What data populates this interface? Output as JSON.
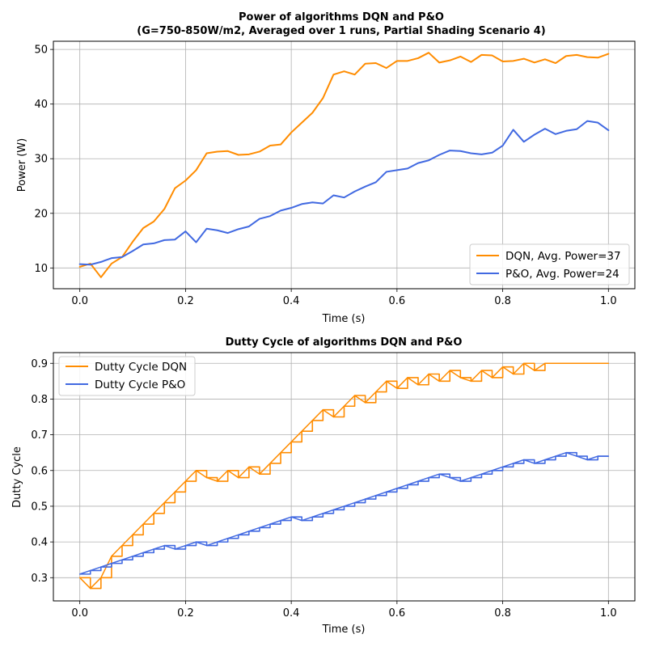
{
  "chart_data": [
    {
      "type": "line",
      "title": "Power of algorithms DQN and P&O",
      "subtitle": "(G=750-850W/m2, Averaged over 1 runs, Partial Shading Scenario 4)",
      "xlabel": "Time (s)",
      "ylabel": "Power (W)",
      "xlim": [
        -0.05,
        1.05
      ],
      "ylim": [
        6.2,
        51.5
      ],
      "xticks": [
        0.0,
        0.2,
        0.4,
        0.6,
        0.8,
        1.0
      ],
      "xtick_labels": [
        "0.0",
        "0.2",
        "0.4",
        "0.6",
        "0.8",
        "1.0"
      ],
      "yticks": [
        10,
        20,
        30,
        40,
        50
      ],
      "ytick_labels": [
        "10",
        "20",
        "30",
        "40",
        "50"
      ],
      "grid": true,
      "legend_position": "lower-right",
      "x": [
        0.0,
        0.02,
        0.04,
        0.06,
        0.08,
        0.1,
        0.12,
        0.14,
        0.16,
        0.18,
        0.2,
        0.22,
        0.24,
        0.26,
        0.28,
        0.3,
        0.32,
        0.34,
        0.36,
        0.38,
        0.4,
        0.42,
        0.44,
        0.46,
        0.48,
        0.5,
        0.52,
        0.54,
        0.56,
        0.58,
        0.6,
        0.62,
        0.64,
        0.66,
        0.68,
        0.7,
        0.72,
        0.74,
        0.76,
        0.78,
        0.8,
        0.82,
        0.84,
        0.86,
        0.88,
        0.9,
        0.92,
        0.94,
        0.96,
        0.98,
        1.0
      ],
      "series": [
        {
          "name": "DQN, Avg. Power=37",
          "color": "#ff8c00",
          "values": [
            10.2,
            10.8,
            8.3,
            10.8,
            12.0,
            14.8,
            17.3,
            18.5,
            20.8,
            24.6,
            26.0,
            27.9,
            31.0,
            31.3,
            31.4,
            30.7,
            30.8,
            31.3,
            32.4,
            32.6,
            34.8,
            36.6,
            38.4,
            41.1,
            45.4,
            46.0,
            45.4,
            47.4,
            47.5,
            46.6,
            47.9,
            47.9,
            48.4,
            49.4,
            47.6,
            48.0,
            48.7,
            47.7,
            49.0,
            48.9,
            47.8,
            47.9,
            48.3,
            47.6,
            48.2,
            47.5,
            48.8,
            49.0,
            48.6,
            48.5,
            49.2
          ]
        },
        {
          "name": "P&O, Avg. Power=24",
          "color": "#4169e1",
          "values": [
            10.7,
            10.6,
            11.1,
            11.8,
            12.0,
            13.1,
            14.3,
            14.5,
            15.1,
            15.2,
            16.7,
            14.7,
            17.2,
            16.9,
            16.4,
            17.1,
            17.6,
            19.0,
            19.5,
            20.5,
            21.0,
            21.7,
            22.0,
            21.8,
            23.3,
            22.9,
            24.0,
            24.9,
            25.7,
            27.6,
            27.9,
            28.2,
            29.2,
            29.7,
            30.7,
            31.5,
            31.4,
            31.0,
            30.8,
            31.1,
            32.4,
            35.3,
            33.1,
            34.4,
            35.5,
            34.5,
            35.1,
            35.4,
            36.9,
            36.6,
            35.2
          ]
        }
      ]
    },
    {
      "type": "line",
      "title": "Dutty Cycle of algorithms DQN and P&O",
      "xlabel": "Time (s)",
      "ylabel": "Dutty Cycle",
      "xlim": [
        -0.05,
        1.05
      ],
      "ylim": [
        0.235,
        0.93
      ],
      "xticks": [
        0.0,
        0.2,
        0.4,
        0.6,
        0.8,
        1.0
      ],
      "xtick_labels": [
        "0.0",
        "0.2",
        "0.4",
        "0.6",
        "0.8",
        "1.0"
      ],
      "yticks": [
        0.3,
        0.4,
        0.5,
        0.6,
        0.7,
        0.8,
        0.9
      ],
      "ytick_labels": [
        "0.3",
        "0.4",
        "0.5",
        "0.6",
        "0.7",
        "0.8",
        "0.9"
      ],
      "grid": true,
      "legend_position": "upper-left",
      "x": [
        0.0,
        0.02,
        0.04,
        0.06,
        0.08,
        0.1,
        0.12,
        0.14,
        0.16,
        0.18,
        0.2,
        0.22,
        0.24,
        0.26,
        0.28,
        0.3,
        0.32,
        0.34,
        0.36,
        0.38,
        0.4,
        0.42,
        0.44,
        0.46,
        0.48,
        0.5,
        0.52,
        0.54,
        0.56,
        0.58,
        0.6,
        0.62,
        0.64,
        0.66,
        0.68,
        0.7,
        0.72,
        0.74,
        0.76,
        0.78,
        0.8,
        0.82,
        0.84,
        0.86,
        0.88,
        0.9,
        0.92,
        0.94,
        0.96,
        0.98,
        1.0
      ],
      "series": [
        {
          "name": "Dutty Cycle DQN",
          "color": "#ff8c00",
          "values": [
            0.3,
            0.27,
            0.3,
            0.36,
            0.39,
            0.42,
            0.45,
            0.48,
            0.51,
            0.54,
            0.57,
            0.6,
            0.58,
            0.57,
            0.6,
            0.58,
            0.61,
            0.59,
            0.62,
            0.65,
            0.68,
            0.71,
            0.74,
            0.77,
            0.75,
            0.78,
            0.81,
            0.79,
            0.82,
            0.85,
            0.83,
            0.86,
            0.84,
            0.87,
            0.85,
            0.88,
            0.86,
            0.85,
            0.88,
            0.86,
            0.89,
            0.87,
            0.9,
            0.88,
            0.9,
            0.9,
            0.9,
            0.9,
            0.9,
            0.9,
            0.9
          ]
        },
        {
          "name": "Dutty Cycle P&O",
          "color": "#4169e1",
          "values": [
            0.31,
            0.32,
            0.33,
            0.34,
            0.35,
            0.36,
            0.37,
            0.38,
            0.39,
            0.38,
            0.39,
            0.4,
            0.39,
            0.4,
            0.41,
            0.42,
            0.43,
            0.44,
            0.45,
            0.46,
            0.47,
            0.46,
            0.47,
            0.48,
            0.49,
            0.5,
            0.51,
            0.52,
            0.53,
            0.54,
            0.55,
            0.56,
            0.57,
            0.58,
            0.59,
            0.58,
            0.57,
            0.58,
            0.59,
            0.6,
            0.61,
            0.62,
            0.63,
            0.62,
            0.63,
            0.64,
            0.65,
            0.64,
            0.63,
            0.64,
            0.64
          ]
        }
      ]
    }
  ]
}
